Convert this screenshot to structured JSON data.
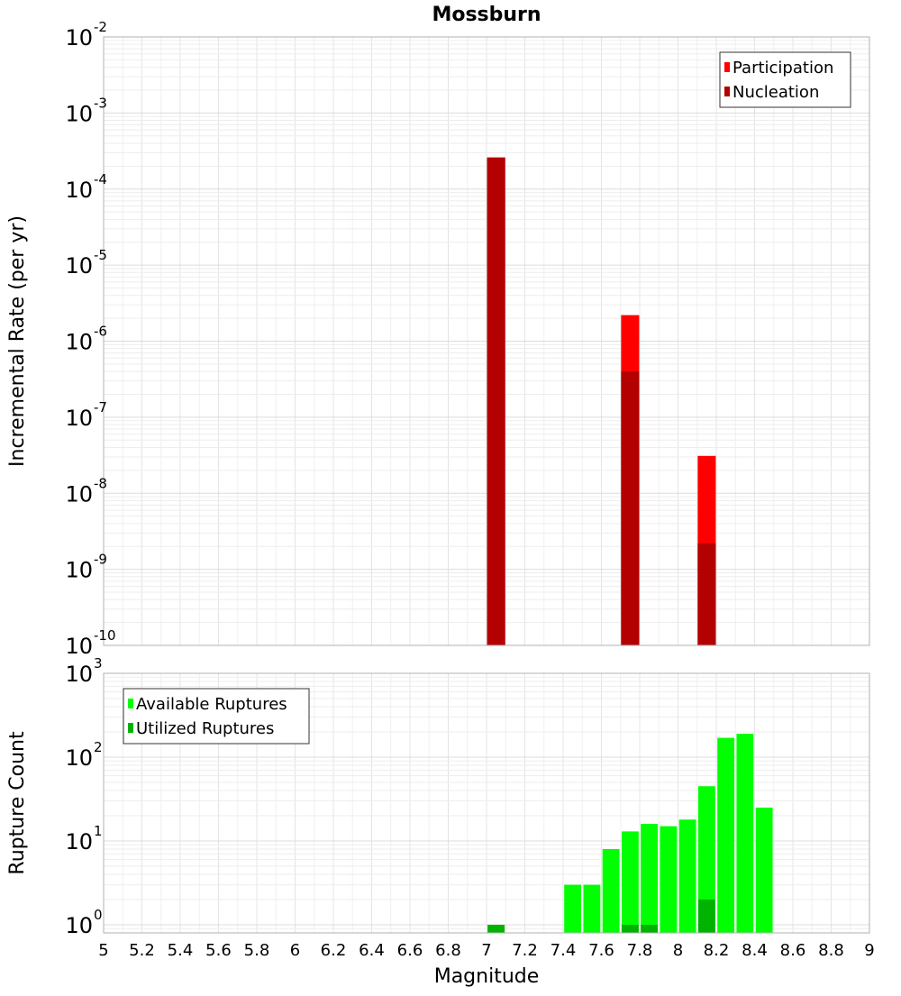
{
  "chart_data": [
    {
      "type": "bar",
      "title": "Mossburn",
      "xlabel": "",
      "ylabel": "Incremental Rate (per yr)",
      "yscale": "log",
      "xlim": [
        5,
        9
      ],
      "ylim": [
        1e-10,
        0.01
      ],
      "ytick_base": "10",
      "ytick_exponents": [
        "-10",
        "-9",
        "-8",
        "-7",
        "-6",
        "-5",
        "-4",
        "-3",
        "-2"
      ],
      "grid": true,
      "legend_position": "top-right",
      "bar_width": 0.1,
      "series": [
        {
          "name": "Participation",
          "color": "#ff0000",
          "x": [
            7.05,
            7.75,
            8.15
          ],
          "values": [
            0.00026,
            2.2e-06,
            3.1e-08
          ]
        },
        {
          "name": "Nucleation",
          "color": "#b30000",
          "x": [
            7.05,
            7.75,
            8.15
          ],
          "values": [
            0.00026,
            4e-07,
            2.2e-09
          ]
        }
      ]
    },
    {
      "type": "bar",
      "title": "",
      "xlabel": "Magnitude",
      "ylabel": "Rupture Count",
      "yscale": "log",
      "xlim": [
        5,
        9
      ],
      "ylim": [
        0.8,
        1000
      ],
      "ytick_base": "10",
      "ytick_exponents": [
        "0",
        "1",
        "2",
        "3"
      ],
      "xticks": [
        "5",
        "5.2",
        "5.4",
        "5.6",
        "5.8",
        "6",
        "6.2",
        "6.4",
        "6.6",
        "6.8",
        "7",
        "7.2",
        "7.4",
        "7.6",
        "7.8",
        "8",
        "8.2",
        "8.4",
        "8.6",
        "8.8",
        "9"
      ],
      "grid": true,
      "legend_position": "top-left",
      "bar_width": 0.1,
      "series": [
        {
          "name": "Available Ruptures",
          "color": "#00ff00",
          "x": [
            7.05,
            7.45,
            7.55,
            7.65,
            7.75,
            7.85,
            7.95,
            8.05,
            8.15,
            8.25,
            8.35,
            8.45
          ],
          "values": [
            1,
            3,
            3,
            8,
            13,
            16,
            15,
            18,
            45,
            170,
            190,
            25
          ]
        },
        {
          "name": "Utilized Ruptures",
          "color": "#00b300",
          "x": [
            7.05,
            7.75,
            7.85,
            8.15
          ],
          "values": [
            1,
            1,
            1,
            2
          ]
        }
      ]
    }
  ]
}
